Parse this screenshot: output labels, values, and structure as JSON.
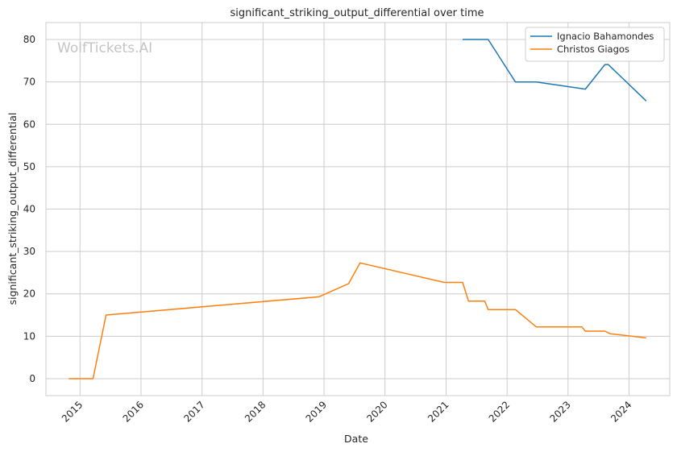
{
  "chart_data": {
    "type": "line",
    "title": "significant_striking_output_differential over time",
    "xlabel": "Date",
    "ylabel": "significant_striking_output_differential",
    "watermark": "WolfTickets.AI",
    "xlim": [
      "2014-06-11",
      "2024-09-01"
    ],
    "ylim": [
      -4,
      84
    ],
    "y_ticks": [
      0,
      10,
      20,
      30,
      40,
      50,
      60,
      70,
      80
    ],
    "x_ticks": [
      {
        "date": "2015-01-01",
        "label": "2015"
      },
      {
        "date": "2016-01-01",
        "label": "2016"
      },
      {
        "date": "2017-01-01",
        "label": "2017"
      },
      {
        "date": "2018-01-01",
        "label": "2018"
      },
      {
        "date": "2019-01-01",
        "label": "2019"
      },
      {
        "date": "2020-01-01",
        "label": "2020"
      },
      {
        "date": "2021-01-01",
        "label": "2021"
      },
      {
        "date": "2022-01-01",
        "label": "2022"
      },
      {
        "date": "2023-01-01",
        "label": "2023"
      },
      {
        "date": "2024-01-01",
        "label": "2024"
      }
    ],
    "grid": true,
    "legend_position": "top-right",
    "series": [
      {
        "name": "Ignacio Bahamondes",
        "color": "#1f77b4",
        "points": [
          {
            "x": "2021-04-10",
            "y": 80.0
          },
          {
            "x": "2021-09-10",
            "y": 80.0
          },
          {
            "x": "2022-02-20",
            "y": 70.0
          },
          {
            "x": "2022-06-25",
            "y": 70.0
          },
          {
            "x": "2023-04-15",
            "y": 68.3
          },
          {
            "x": "2023-08-10",
            "y": 74.1
          },
          {
            "x": "2023-08-30",
            "y": 74.1
          },
          {
            "x": "2024-04-13",
            "y": 65.5
          }
        ]
      },
      {
        "name": "Christos Giagos",
        "color": "#ff7f0e",
        "points": [
          {
            "x": "2014-10-25",
            "y": 0.0
          },
          {
            "x": "2015-03-20",
            "y": 0.0
          },
          {
            "x": "2015-06-06",
            "y": 15.0
          },
          {
            "x": "2018-12-01",
            "y": 19.3
          },
          {
            "x": "2019-05-28",
            "y": 22.4
          },
          {
            "x": "2019-08-05",
            "y": 27.3
          },
          {
            "x": "2020-12-20",
            "y": 22.7
          },
          {
            "x": "2021-04-10",
            "y": 22.7
          },
          {
            "x": "2021-05-15",
            "y": 18.3
          },
          {
            "x": "2021-08-20",
            "y": 18.3
          },
          {
            "x": "2021-09-10",
            "y": 16.3
          },
          {
            "x": "2022-02-20",
            "y": 16.3
          },
          {
            "x": "2022-06-25",
            "y": 12.2
          },
          {
            "x": "2023-03-25",
            "y": 12.2
          },
          {
            "x": "2023-04-15",
            "y": 11.2
          },
          {
            "x": "2023-08-10",
            "y": 11.2
          },
          {
            "x": "2023-09-10",
            "y": 10.6
          },
          {
            "x": "2024-04-13",
            "y": 9.6
          }
        ]
      }
    ]
  }
}
